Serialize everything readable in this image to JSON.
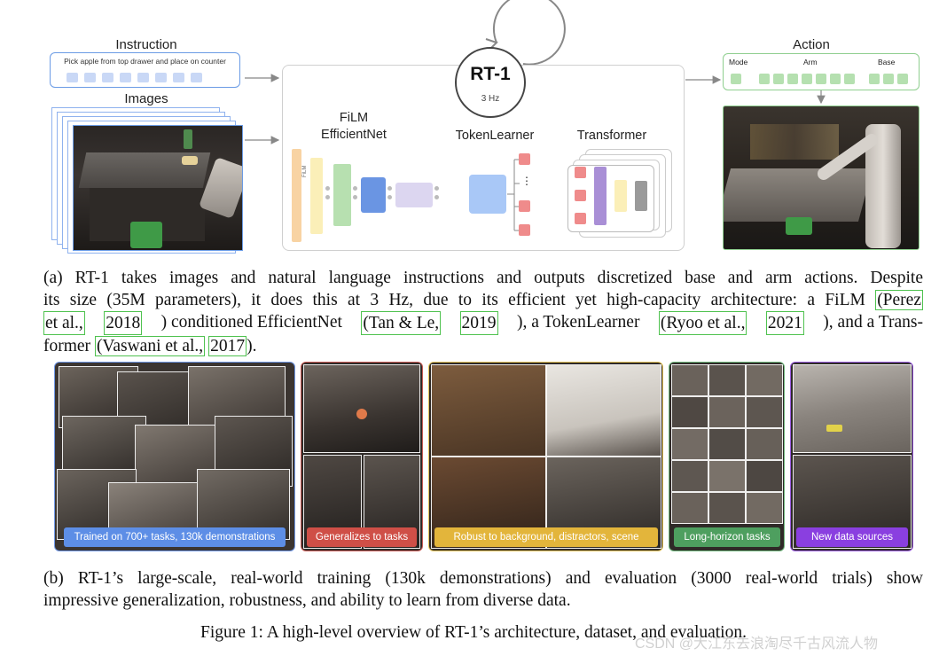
{
  "diagram": {
    "instruction_heading": "Instruction",
    "instruction_text": "Pick apple from top drawer and place on counter",
    "images_heading": "Images",
    "rt1_name": "RT-1",
    "rt1_rate": "3 Hz",
    "film_line1": "FiLM",
    "film_line2": "EfficientNet",
    "tokenlearner": "TokenLearner",
    "transformer": "Transformer",
    "action_heading": "Action",
    "action_mode": "Mode",
    "action_arm": "Arm",
    "action_base": "Base",
    "film_vertical_text": "FiLM",
    "ellipsis": "⋮",
    "colors": {
      "instruction_blue": "#6a9be5",
      "token_blue": "#c9d8f6",
      "action_green": "#8fcf8f",
      "token_green": "#b5e0b0",
      "film_orange": "#f8d3a3",
      "film_yellow": "#fbefb8",
      "film_green": "#b7e0b0",
      "film_blue": "#6a95e3",
      "film_lavender": "#dcd6f0",
      "token_pink": "#ef8b8b",
      "tf_purple": "#a98fd6",
      "tf_gray": "#9a9a9a"
    }
  },
  "caption_a": {
    "line1": "(a) RT-1 takes images and natural language instructions and outputs discretized base and arm actions. Despite",
    "line2": "its size (35M parameters), it does this at 3 Hz, due to its efficient yet high-capacity architecture: a FiLM",
    "cite_perez1": "(Perez",
    "cite_perez2": "et al.,",
    "cite_perez_year": "2018",
    "line3_mid": ") conditioned EfficientNet",
    "cite_tan": "(Tan & Le,",
    "cite_tan_year": "2019",
    "line3_mid2": "), a TokenLearner",
    "cite_ryoo": "(Ryoo et al.,",
    "cite_ryoo_year": "2021",
    "line3_end": "), and a Trans-",
    "line4_start": "former",
    "cite_vaswani": "(Vaswani et al.,",
    "cite_vaswani_year": "2017",
    "line4_end": ")."
  },
  "panels": [
    {
      "label": "Trained on 700+ tasks, 130k demonstrations",
      "border": "#6f97e6",
      "banner": "#5d8ee6"
    },
    {
      "label": "Generalizes to tasks",
      "border": "#c95a55",
      "banner": "#cf4f47"
    },
    {
      "label": "Robust to background, distractors, scene",
      "border": "#e2c257",
      "banner": "#e3b53b"
    },
    {
      "label": "Long-horizon tasks",
      "border": "#6fb87c",
      "banner": "#4e9f5f"
    },
    {
      "label": "New data sources",
      "border": "#9a5be0",
      "banner": "#8a3fe0"
    }
  ],
  "caption_b": {
    "line1": "(b) RT-1’s large-scale, real-world training (130k demonstrations) and evaluation (3000 real-world trials) show",
    "line2": "impressive generalization, robustness, and ability to learn from diverse data."
  },
  "figure_caption": "Figure 1: A high-level overview of RT-1’s architecture, dataset, and evaluation.",
  "watermark": "CSDN @大江东去浪淘尽千古风流人物"
}
